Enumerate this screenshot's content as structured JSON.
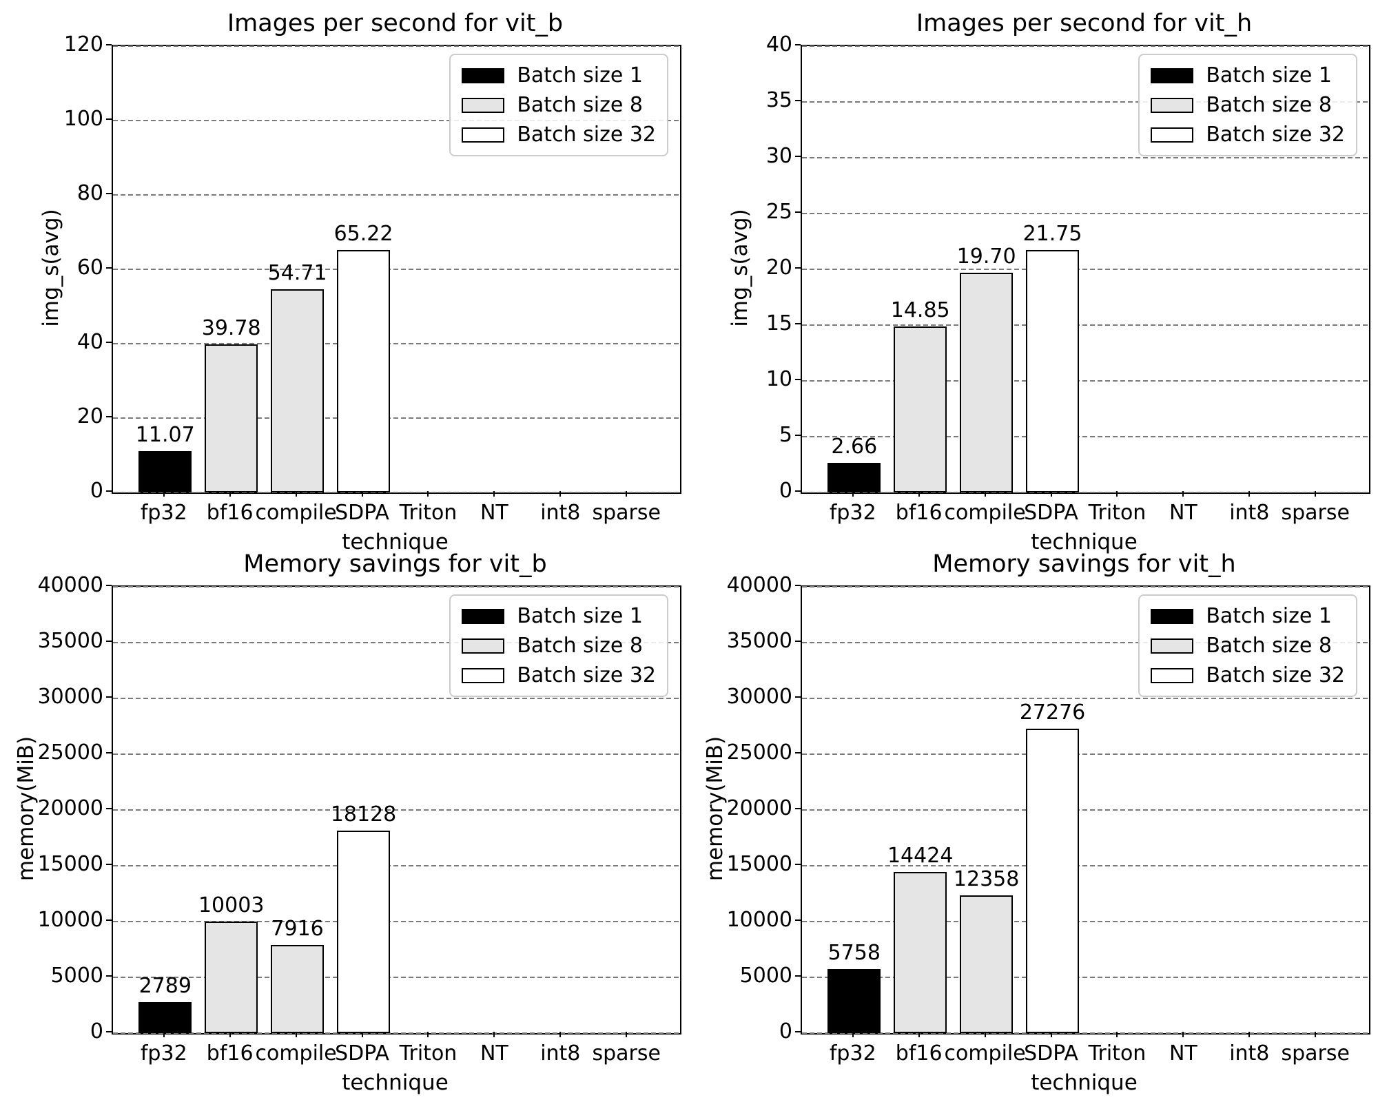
{
  "figure": {
    "background": "#ffffff",
    "grid_color": "#7a7a7a",
    "spine_color": "#000000",
    "legend": {
      "position": "upper-right",
      "entries": [
        {
          "label": "Batch size 1",
          "color": "#000000"
        },
        {
          "label": "Batch size 8",
          "color": "#e5e5e5"
        },
        {
          "label": "Batch size 32",
          "color": "#ffffff"
        }
      ]
    }
  },
  "chart_data": [
    {
      "id": "throughput-vit-b",
      "type": "bar",
      "title": "Images per second for vit_b",
      "xlabel": "technique",
      "ylabel": "img_s(avg)",
      "ylim": [
        0,
        120
      ],
      "yticks": [
        0,
        20,
        40,
        60,
        80,
        100,
        120
      ],
      "grid": "horizontal-dashed",
      "categories": [
        "fp32",
        "bf16",
        "compile",
        "SDPA",
        "Triton",
        "NT",
        "int8",
        "sparse"
      ],
      "bars": [
        {
          "category": "fp32",
          "value": 11.07,
          "label": "11.07",
          "series": "Batch size 1"
        },
        {
          "category": "bf16",
          "value": 39.78,
          "label": "39.78",
          "series": "Batch size 8"
        },
        {
          "category": "compile",
          "value": 54.71,
          "label": "54.71",
          "series": "Batch size 8"
        },
        {
          "category": "SDPA",
          "value": 65.22,
          "label": "65.22",
          "series": "Batch size 32"
        }
      ]
    },
    {
      "id": "throughput-vit-h",
      "type": "bar",
      "title": "Images per second for vit_h",
      "xlabel": "technique",
      "ylabel": "img_s(avg)",
      "ylim": [
        0,
        40
      ],
      "yticks": [
        0,
        5,
        10,
        15,
        20,
        25,
        30,
        35,
        40
      ],
      "grid": "horizontal-dashed",
      "categories": [
        "fp32",
        "bf16",
        "compile",
        "SDPA",
        "Triton",
        "NT",
        "int8",
        "sparse"
      ],
      "bars": [
        {
          "category": "fp32",
          "value": 2.66,
          "label": "2.66",
          "series": "Batch size 1"
        },
        {
          "category": "bf16",
          "value": 14.85,
          "label": "14.85",
          "series": "Batch size 8"
        },
        {
          "category": "compile",
          "value": 19.7,
          "label": "19.70",
          "series": "Batch size 8"
        },
        {
          "category": "SDPA",
          "value": 21.75,
          "label": "21.75",
          "series": "Batch size 32"
        }
      ]
    },
    {
      "id": "memory-vit-b",
      "type": "bar",
      "title": "Memory savings for vit_b",
      "xlabel": "technique",
      "ylabel": "memory(MiB)",
      "ylim": [
        0,
        40000
      ],
      "yticks": [
        0,
        5000,
        10000,
        15000,
        20000,
        25000,
        30000,
        35000,
        40000
      ],
      "grid": "horizontal-dashed",
      "categories": [
        "fp32",
        "bf16",
        "compile",
        "SDPA",
        "Triton",
        "NT",
        "int8",
        "sparse"
      ],
      "bars": [
        {
          "category": "fp32",
          "value": 2789,
          "label": "2789",
          "series": "Batch size 1"
        },
        {
          "category": "bf16",
          "value": 10003,
          "label": "10003",
          "series": "Batch size 8"
        },
        {
          "category": "compile",
          "value": 7916,
          "label": "7916",
          "series": "Batch size 8"
        },
        {
          "category": "SDPA",
          "value": 18128,
          "label": "18128",
          "series": "Batch size 32"
        }
      ]
    },
    {
      "id": "memory-vit-h",
      "type": "bar",
      "title": "Memory savings for vit_h",
      "xlabel": "technique",
      "ylabel": "memory(MiB)",
      "ylim": [
        0,
        40000
      ],
      "yticks": [
        0,
        5000,
        10000,
        15000,
        20000,
        25000,
        30000,
        35000,
        40000
      ],
      "grid": "horizontal-dashed",
      "categories": [
        "fp32",
        "bf16",
        "compile",
        "SDPA",
        "Triton",
        "NT",
        "int8",
        "sparse"
      ],
      "bars": [
        {
          "category": "fp32",
          "value": 5758,
          "label": "5758",
          "series": "Batch size 1"
        },
        {
          "category": "bf16",
          "value": 14424,
          "label": "14424",
          "series": "Batch size 8"
        },
        {
          "category": "compile",
          "value": 12358,
          "label": "12358",
          "series": "Batch size 8"
        },
        {
          "category": "SDPA",
          "value": 27276,
          "label": "27276",
          "series": "Batch size 32"
        }
      ]
    }
  ]
}
